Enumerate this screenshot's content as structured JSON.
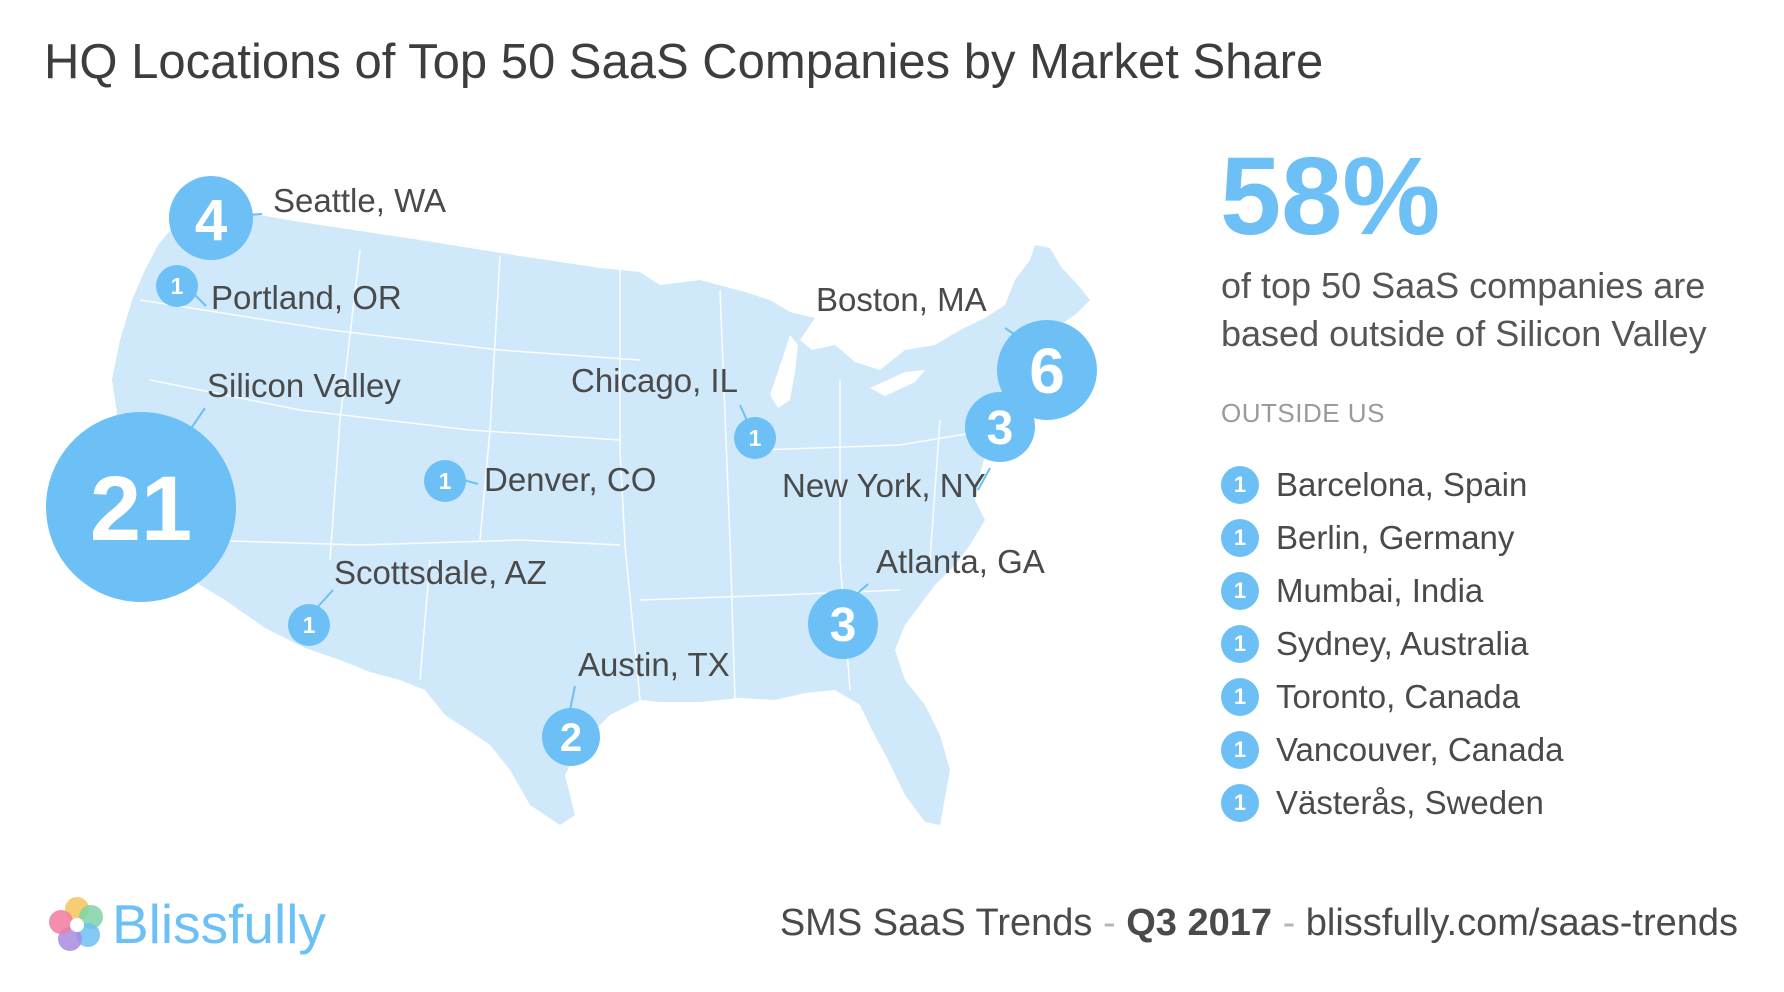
{
  "title": "HQ Locations of Top 50 SaaS Companies by Market Share",
  "colors": {
    "accent": "#6cc0f5",
    "map_fill": "#cfe9fb",
    "map_lines": "#ffffff",
    "text": "#4a4a4a"
  },
  "map": {
    "cities": [
      {
        "name": "Seattle, WA",
        "count": "4"
      },
      {
        "name": "Portland, OR",
        "count": "1"
      },
      {
        "name": "Silicon Valley",
        "count": "21"
      },
      {
        "name": "Denver, CO",
        "count": "1"
      },
      {
        "name": "Scottsdale, AZ",
        "count": "1"
      },
      {
        "name": "Austin, TX",
        "count": "2"
      },
      {
        "name": "Chicago, IL",
        "count": "1"
      },
      {
        "name": "Boston, MA",
        "count": "6"
      },
      {
        "name": "New York, NY",
        "count": "3"
      },
      {
        "name": "Atlanta, GA",
        "count": "3"
      }
    ]
  },
  "stat": {
    "percent": "58%",
    "description": "of top 50 SaaS companies are based outside of Silicon Valley"
  },
  "outside_us": {
    "heading": "OUTSIDE US",
    "items": [
      {
        "count": "1",
        "name": "Barcelona, Spain"
      },
      {
        "count": "1",
        "name": "Berlin, Germany"
      },
      {
        "count": "1",
        "name": "Mumbai, India"
      },
      {
        "count": "1",
        "name": "Sydney, Australia"
      },
      {
        "count": "1",
        "name": "Toronto, Canada"
      },
      {
        "count": "1",
        "name": "Vancouver, Canada"
      },
      {
        "count": "1",
        "name": "Västerås, Sweden"
      }
    ]
  },
  "logo": {
    "name": "Blissfully"
  },
  "footer": {
    "report": "SMS SaaS Trends",
    "separator": "-",
    "period": "Q3 2017",
    "url": "blissfully.com/saas-trends"
  }
}
